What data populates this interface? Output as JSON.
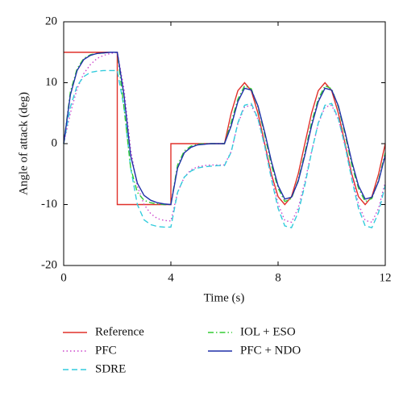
{
  "chart_data": {
    "type": "line",
    "xlabel": "Time (s)",
    "ylabel": "Angle of attack (deg)",
    "xlim": [
      0,
      12
    ],
    "xticks": [
      0,
      4,
      8,
      12
    ],
    "ylim": [
      -20,
      20
    ],
    "yticks": [
      -20,
      -10,
      0,
      10,
      20
    ],
    "series": [
      {
        "name": "Reference",
        "color": "#e0302a",
        "style": "solid",
        "x": [
          0,
          2,
          2,
          4,
          4,
          6,
          6.25,
          6.5,
          6.75,
          7,
          7.25,
          7.5,
          7.75,
          8,
          8.25,
          8.5,
          8.75,
          9,
          9.25,
          9.5,
          9.75,
          10,
          10.25,
          10.5,
          10.75,
          11,
          11.25,
          11.5,
          11.75,
          12
        ],
        "values": [
          15,
          15,
          -10,
          -10,
          0,
          0,
          5,
          8.7,
          10,
          8.7,
          5,
          0,
          -5,
          -8.7,
          -10,
          -8.7,
          -5,
          0,
          5,
          8.7,
          10,
          8.7,
          5,
          0,
          -5,
          -8.7,
          -10,
          -8.7,
          -5,
          0
        ]
      },
      {
        "name": "PFC",
        "color": "#cc44cc",
        "style": "dotted",
        "x": [
          0,
          0.25,
          0.5,
          0.75,
          1,
          1.25,
          1.5,
          1.75,
          2,
          2.25,
          2.5,
          2.75,
          3,
          3.25,
          3.5,
          3.75,
          4,
          4.25,
          4.5,
          4.75,
          5,
          5.25,
          5.5,
          5.75,
          6,
          6.25,
          6.5,
          6.75,
          7,
          7.25,
          7.5,
          7.75,
          8,
          8.25,
          8.5,
          8.75,
          9,
          9.25,
          9.5,
          9.75,
          10,
          10.25,
          10.5,
          10.75,
          11,
          11.25,
          11.5,
          11.75,
          12
        ],
        "values": [
          0,
          5,
          9,
          11.5,
          13,
          14,
          14.5,
          14.8,
          15,
          9,
          -1,
          -7,
          -10,
          -11.5,
          -12.3,
          -12.6,
          -12.7,
          -8,
          -5.5,
          -4.3,
          -3.8,
          -3.6,
          -3.5,
          -3.5,
          -3.5,
          -1.3,
          3.3,
          6,
          6.3,
          4,
          -0.3,
          -5.3,
          -9.9,
          -12.6,
          -12.9,
          -10.6,
          -6.3,
          -1.3,
          3.3,
          6,
          6.3,
          4,
          -0.3,
          -5.3,
          -9.9,
          -12.6,
          -12.9,
          -10.6,
          -6.3
        ]
      },
      {
        "name": "SDRE",
        "color": "#33ccdd",
        "style": "dashed",
        "x": [
          0,
          0.25,
          0.5,
          0.75,
          1,
          1.25,
          1.5,
          1.75,
          2,
          2.25,
          2.5,
          2.75,
          3,
          3.25,
          3.5,
          3.75,
          4,
          4.25,
          4.5,
          4.75,
          5,
          5.25,
          5.5,
          5.75,
          6,
          6.25,
          6.5,
          6.75,
          7,
          7.25,
          7.5,
          7.75,
          8,
          8.25,
          8.5,
          8.75,
          9,
          9.25,
          9.5,
          9.75,
          10,
          10.25,
          10.5,
          10.75,
          11,
          11.25,
          11.5,
          11.75,
          12
        ],
        "values": [
          0,
          6,
          9.5,
          11,
          11.7,
          11.9,
          12,
          12,
          12,
          6,
          -4,
          -10,
          -12.5,
          -13.3,
          -13.6,
          -13.7,
          -13.7,
          -8,
          -5.5,
          -4.5,
          -4,
          -3.8,
          -3.7,
          -3.6,
          -3.6,
          -1.4,
          3.4,
          6.3,
          6.6,
          4.1,
          -0.4,
          -5.8,
          -10.6,
          -13.5,
          -13.8,
          -11.3,
          -6.8,
          -1.4,
          3.4,
          6.3,
          6.6,
          4.1,
          -0.4,
          -5.8,
          -10.6,
          -13.5,
          -13.8,
          -11.3,
          -6.8
        ]
      },
      {
        "name": "IOL + ESO",
        "color": "#33cc33",
        "style": "dashdot",
        "x": [
          0,
          0.25,
          0.5,
          0.75,
          1,
          1.25,
          1.5,
          1.75,
          2,
          2.25,
          2.5,
          2.75,
          3,
          3.25,
          3.5,
          3.75,
          4,
          4.25,
          4.5,
          4.75,
          5,
          5.25,
          5.5,
          5.75,
          6,
          6.25,
          6.5,
          6.75,
          7,
          7.25,
          7.5,
          7.75,
          8,
          8.25,
          8.5,
          8.75,
          9,
          9.25,
          9.5,
          9.75,
          10,
          10.25,
          10.5,
          10.75,
          11,
          11.25,
          11.5,
          11.75,
          12
        ],
        "values": [
          0,
          8.5,
          12.3,
          14,
          14.6,
          14.8,
          14.9,
          15,
          15,
          6,
          -4,
          -8,
          -9.3,
          -9.7,
          -9.9,
          -10,
          -10,
          -3.5,
          -1.2,
          -0.4,
          -0.1,
          0,
          0,
          0,
          0,
          3.5,
          7.3,
          9.5,
          9,
          6,
          1.5,
          -3.5,
          -7.3,
          -9.5,
          -9,
          -6,
          -1.5,
          3.5,
          7.3,
          9.5,
          9,
          6,
          1.5,
          -3.5,
          -7.3,
          -9.5,
          -9,
          -6,
          -1.5
        ]
      },
      {
        "name": "PFC + NDO",
        "color": "#1f2fa8",
        "style": "solid",
        "x": [
          0,
          0.25,
          0.5,
          0.75,
          1,
          1.25,
          1.5,
          1.75,
          2,
          2.25,
          2.5,
          2.75,
          3,
          3.25,
          3.5,
          3.75,
          4,
          4.25,
          4.5,
          4.75,
          5,
          5.25,
          5.5,
          5.75,
          6,
          6.25,
          6.5,
          6.75,
          7,
          7.25,
          7.5,
          7.75,
          8,
          8.25,
          8.5,
          8.75,
          9,
          9.25,
          9.5,
          9.75,
          10,
          10.25,
          10.5,
          10.75,
          11,
          11.25,
          11.5,
          11.75,
          12
        ],
        "values": [
          0,
          8,
          12,
          13.8,
          14.5,
          14.8,
          14.9,
          15,
          15,
          8,
          -2,
          -6.5,
          -8.5,
          -9.3,
          -9.7,
          -9.9,
          -10,
          -4,
          -1.5,
          -0.6,
          -0.2,
          -0.1,
          0,
          0,
          0,
          2.9,
          6.9,
          9.1,
          8.8,
          6.2,
          1.9,
          -2.9,
          -6.9,
          -9.1,
          -8.8,
          -6.2,
          -1.9,
          2.9,
          6.9,
          9.1,
          8.8,
          6.2,
          1.9,
          -2.9,
          -6.9,
          -9.1,
          -8.8,
          -6.2,
          -1.9
        ]
      }
    ]
  }
}
